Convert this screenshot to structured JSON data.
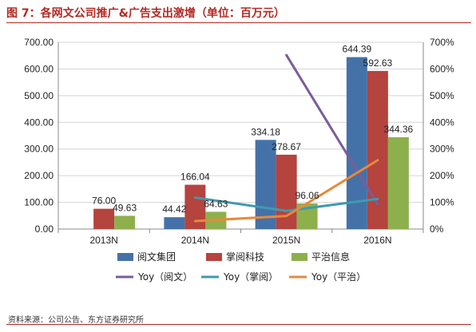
{
  "header": {
    "title": "图 7：各网文公司推广&广告支出激增（单位：百万元）"
  },
  "footer": {
    "source": "资料来源：公司公告、东方证券研究所"
  },
  "chart_data": {
    "type": "bar",
    "categories": [
      "2013N",
      "2014N",
      "2015N",
      "2016N"
    ],
    "series": [
      {
        "name": "阅文集团",
        "kind": "bar",
        "axis": "left",
        "color": "#4472a8",
        "values": [
          null,
          44.42,
          334.18,
          644.39
        ],
        "labels": [
          "",
          "44.42",
          "334.18",
          "644.39"
        ]
      },
      {
        "name": "掌阅科技",
        "kind": "bar",
        "axis": "left",
        "color": "#b5433e",
        "values": [
          76.0,
          166.04,
          278.67,
          592.63
        ],
        "labels": [
          "76.00",
          "166.04",
          "278.67",
          "592.63"
        ]
      },
      {
        "name": "平治信息",
        "kind": "bar",
        "axis": "left",
        "color": "#8db04d",
        "values": [
          49.63,
          64.63,
          96.06,
          344.36
        ],
        "labels": [
          "49.63",
          "64.63",
          "96.06",
          "344.36"
        ]
      },
      {
        "name": "Yoy（阅文）",
        "kind": "line",
        "axis": "right",
        "color": "#7a5c9a",
        "values": [
          null,
          null,
          652,
          93
        ]
      },
      {
        "name": "Yoy（掌阅）",
        "kind": "line",
        "axis": "right",
        "color": "#3f9aae",
        "values": [
          null,
          118,
          68,
          113
        ]
      },
      {
        "name": "Yoy（平治）",
        "kind": "line",
        "axis": "right",
        "color": "#e8893a",
        "values": [
          null,
          30,
          49,
          258
        ]
      }
    ],
    "y_left": {
      "lim": [
        0,
        700
      ],
      "ticks": [
        "0.00",
        "100.00",
        "200.00",
        "300.00",
        "400.00",
        "500.00",
        "600.00",
        "700.00"
      ]
    },
    "y_right": {
      "lim": [
        0,
        700
      ],
      "ticks": [
        "0%",
        "100%",
        "200%",
        "300%",
        "400%",
        "500%",
        "600%",
        "700%"
      ]
    },
    "grid": true,
    "legend_position": "bottom"
  }
}
